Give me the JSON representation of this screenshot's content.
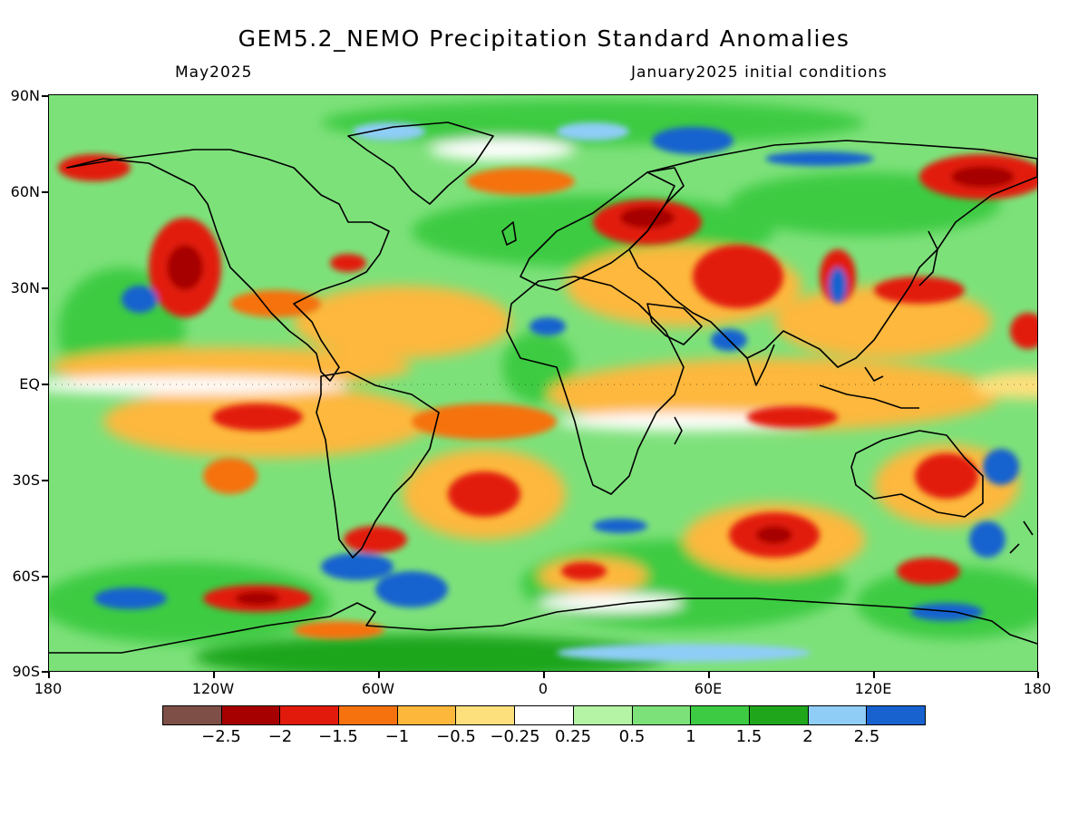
{
  "title": "GEM5.2_NEMO Precipitation Standard Anomalies",
  "subtitle_left": "May2025",
  "subtitle_right": "January2025 initial conditions",
  "map": {
    "lat_labels": [
      "90N",
      "60N",
      "30N",
      "EQ",
      "30S",
      "60S",
      "90S"
    ],
    "lon_labels": [
      "180",
      "120W",
      "60W",
      "0",
      "60E",
      "120E",
      "180"
    ],
    "palette": {
      "ocean_base": "#7de17a",
      "dry_extreme": "#7d4f46",
      "dry_strong": "#a60000",
      "dry_moderate": "#e21a0c",
      "dry_mild": "#f5720f",
      "dry_weak": "#fdb83c",
      "dry_slight": "#fde07b",
      "neutral": "#ffffff",
      "wet_slight": "#b4f4a4",
      "wet_weak": "#7de17a",
      "wet_mild": "#3ccb42",
      "wet_moderate": "#1fa61b",
      "wet_strong": "#8fcdf7",
      "wet_extreme": "#1762cf",
      "coastline": "#000000"
    }
  },
  "legend": {
    "colors": [
      "#7d4f46",
      "#a60000",
      "#e21a0c",
      "#f5720f",
      "#fdb83c",
      "#fde07b",
      "#ffffff",
      "#b4f4a4",
      "#7de17a",
      "#3ccb42",
      "#1fa61b",
      "#8fcdf7",
      "#1762cf"
    ],
    "labels": [
      "−2.5",
      "−2",
      "−1.5",
      "−1",
      "−0.5",
      "−0.25",
      "0.25",
      "0.5",
      "1",
      "1.5",
      "2",
      "2.5"
    ]
  }
}
